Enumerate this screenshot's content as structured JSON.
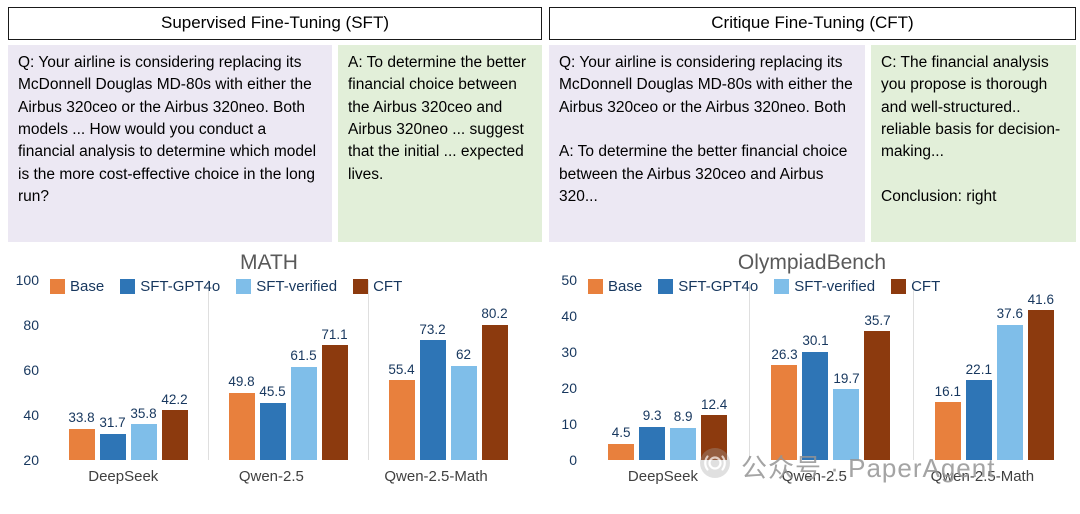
{
  "panels": [
    {
      "title": "Supervised Fine-Tuning (SFT)",
      "left_box": "Q: Your airline is considering replacing its McDonnell Douglas MD-80s with either the Airbus 320ceo or the Airbus 320neo. Both models ...  How would you conduct a financial analysis to determine which model is the more cost-effective choice in the long run?",
      "right_box": "A: To determine the better financial choice between the Airbus 320ceo and Airbus 320neo ... suggest that the initial ... expected lives."
    },
    {
      "title": "Critique Fine-Tuning (CFT)",
      "left_box": "Q: Your airline is considering replacing its McDonnell Douglas MD-80s with either the Airbus 320ceo or the Airbus 320neo. Both\n\nA: To determine the better financial choice between the Airbus 320ceo and Airbus 320...",
      "right_box": "C: The financial analysis you propose is thorough and well-structured.. reliable basis for decision-making...\n\nConclusion: right"
    }
  ],
  "chart_data": [
    {
      "type": "bar",
      "title": "MATH",
      "categories": [
        "DeepSeek",
        "Qwen-2.5",
        "Qwen-2.5-Math"
      ],
      "series": [
        {
          "name": "Base",
          "color": "#E8803D",
          "values": [
            33.8,
            49.8,
            55.4
          ]
        },
        {
          "name": "SFT-GPT4o",
          "color": "#2E75B6",
          "values": [
            31.7,
            45.5,
            73.2
          ]
        },
        {
          "name": "SFT-verified",
          "color": "#7FBEE9",
          "values": [
            35.8,
            61.5,
            62
          ]
        },
        {
          "name": "CFT",
          "color": "#8C3A0E",
          "values": [
            42.2,
            71.1,
            80.2
          ]
        }
      ],
      "ylim": [
        20,
        100
      ],
      "yticks": [
        20,
        40,
        60,
        80,
        100
      ],
      "legend_position": "top-left",
      "grid": false
    },
    {
      "type": "bar",
      "title": "OlympiadBench",
      "categories": [
        "DeepSeek",
        "Qwen-2.5",
        "Qwen-2.5-Math"
      ],
      "series": [
        {
          "name": "Base",
          "color": "#E8803D",
          "values": [
            4.5,
            26.3,
            16.1
          ]
        },
        {
          "name": "SFT-GPT4o",
          "color": "#2E75B6",
          "values": [
            9.3,
            30.1,
            22.1
          ]
        },
        {
          "name": "SFT-verified",
          "color": "#7FBEE9",
          "values": [
            8.9,
            19.7,
            37.6
          ]
        },
        {
          "name": "CFT",
          "color": "#8C3A0E",
          "values": [
            12.4,
            35.7,
            41.6
          ]
        }
      ],
      "ylim": [
        0,
        50
      ],
      "yticks": [
        0,
        10,
        20,
        30,
        40,
        50
      ],
      "legend_position": "top-left",
      "grid": false
    }
  ],
  "watermark": {
    "text": "公众号 · PaperAgent"
  }
}
